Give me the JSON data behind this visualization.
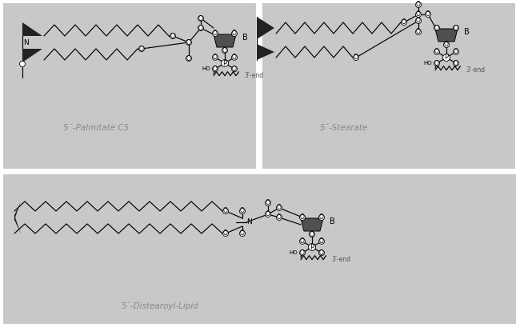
{
  "labels": {
    "palmitate": "5´-Palmitate C5",
    "stearate": "5´-Stearate",
    "distearoyl": "5´-Distearoyl-Lipid"
  },
  "bg_color": "#c8c8c8",
  "panel1": [
    4,
    4,
    316,
    207
  ],
  "panel2": [
    328,
    4,
    316,
    207
  ],
  "panel3": [
    4,
    218,
    641,
    187
  ],
  "line_color": "#000000",
  "label_color": "#888888",
  "label_fontsize": 7.5
}
